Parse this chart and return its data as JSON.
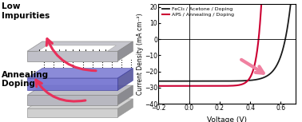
{
  "xlabel": "Voltage (V)",
  "ylabel": "Current Density (mA cm⁻²)",
  "xlim": [
    -0.2,
    0.7
  ],
  "ylim": [
    -40,
    22
  ],
  "yticks": [
    -40,
    -30,
    -20,
    -10,
    0,
    10,
    20
  ],
  "xticks": [
    -0.2,
    0.0,
    0.2,
    0.4,
    0.6
  ],
  "legend1": "FeCl₃ / Acetone / Doping",
  "legend2": "APS / Annealing / Doping",
  "color_black": "#1a1a1a",
  "color_red": "#cc0033",
  "arrow_color_plot": "#f080a0",
  "arrow_color_left": "#e8305a",
  "left_text1": "Low\nImpurities",
  "left_text2": "Annealing\nDoping",
  "bg_color": "#ffffff",
  "layer_gray_light": "#d0d0d0",
  "layer_gray_mid": "#b8b8c0",
  "layer_blue": "#7070d0",
  "layer_blue_top": "#9898e0",
  "layer_top_gray": "#c0c0c8",
  "graphene_color": "#222222"
}
